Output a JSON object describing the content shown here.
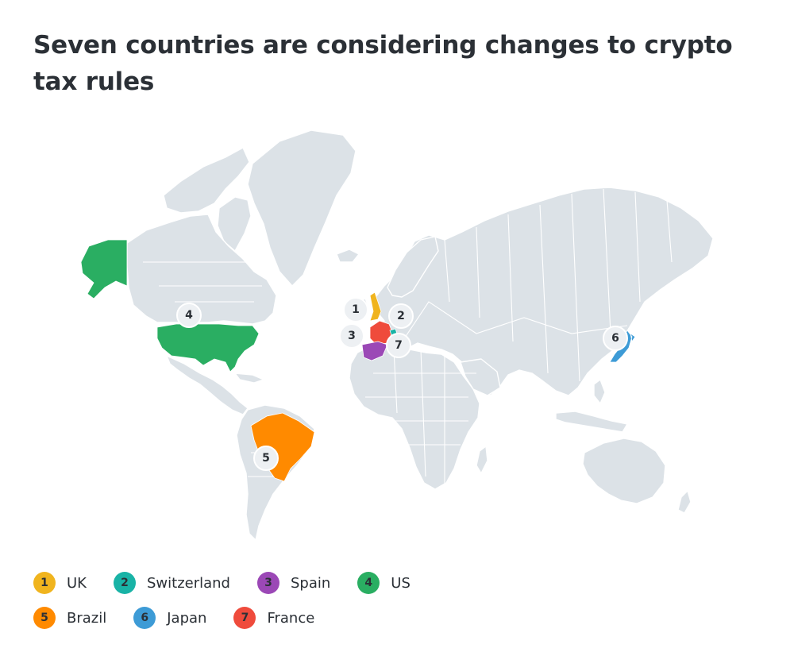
{
  "title": "Seven countries are considering changes to crypto tax rules",
  "colors": {
    "land": "#dce2e7",
    "uk": "#f0b41e",
    "switzerland": "#19b3a6",
    "spain": "#9b48b6",
    "us": "#2aae62",
    "brazil": "#ff8a00",
    "japan": "#3d9bd6",
    "france": "#ef4b3c",
    "marker": "#edf0f3"
  },
  "markers": [
    {
      "number": "1",
      "country": "UK"
    },
    {
      "number": "2",
      "country": "Switzerland"
    },
    {
      "number": "3",
      "country": "Spain"
    },
    {
      "number": "4",
      "country": "US"
    },
    {
      "number": "5",
      "country": "Brazil"
    },
    {
      "number": "6",
      "country": "Japan"
    },
    {
      "number": "7",
      "country": "France"
    }
  ],
  "legend": [
    {
      "number": "1",
      "label": "UK",
      "color": "#f0b41e"
    },
    {
      "number": "2",
      "label": "Switzerland",
      "color": "#19b3a6"
    },
    {
      "number": "3",
      "label": "Spain",
      "color": "#9b48b6"
    },
    {
      "number": "4",
      "label": "US",
      "color": "#2aae62"
    },
    {
      "number": "5",
      "label": "Brazil",
      "color": "#ff8a00"
    },
    {
      "number": "6",
      "label": "Japan",
      "color": "#3d9bd6"
    },
    {
      "number": "7",
      "label": "France",
      "color": "#ef4b3c"
    }
  ]
}
